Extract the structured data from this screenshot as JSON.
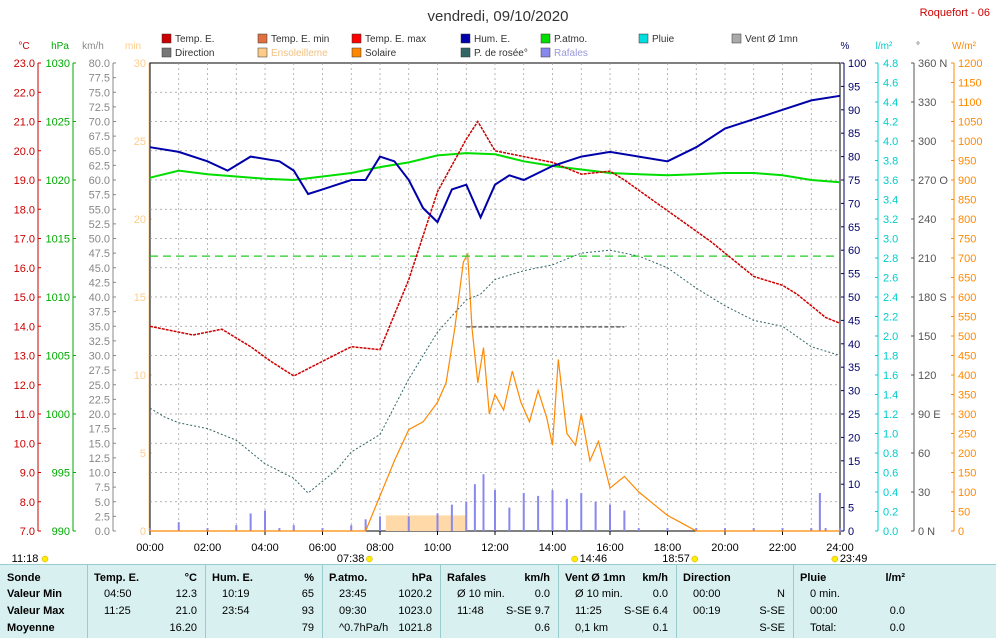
{
  "header": {
    "title": "vendredi, 09/10/2020",
    "station": "Roquefort - 06"
  },
  "legend": [
    {
      "label": "Temp. E.",
      "color": "#cc0000"
    },
    {
      "label": "Temp. E. min",
      "color": "#e07040"
    },
    {
      "label": "Temp. E. max",
      "color": "#ff0000"
    },
    {
      "label": "Hum. E.",
      "color": "#0000aa"
    },
    {
      "label": "P.atmo.",
      "color": "#00dd00"
    },
    {
      "label": "Pluie",
      "color": "#00dddd"
    },
    {
      "label": "Vent Ø 1mn",
      "color": "#aaaaaa"
    },
    {
      "label": "Direction",
      "color": "#777777"
    },
    {
      "label": "Ensoleilleme",
      "color": "#ffcc88"
    },
    {
      "label": "Solaire",
      "color": "#ff8800"
    },
    {
      "label": "P. de rosée°",
      "color": "#336666"
    },
    {
      "label": "Rafales",
      "color": "#8888ee"
    }
  ],
  "axes": {
    "temp": {
      "unit": "°C",
      "color": "#cc0000",
      "ticks": [
        "23.0",
        "22.0",
        "21.0",
        "20.0",
        "19.0",
        "18.0",
        "17.0",
        "16.0",
        "15.0",
        "14.0",
        "13.0",
        "12.0",
        "11.0",
        "10.0",
        "9.0",
        "8.0",
        "7.0"
      ]
    },
    "press": {
      "unit": "hPa",
      "color": "#00aa00",
      "ticks": [
        "1030",
        "1025",
        "1020",
        "1015",
        "1010",
        "1005",
        "1000",
        "995",
        "990"
      ]
    },
    "wind": {
      "unit": "km/h",
      "color": "#888888",
      "ticks": [
        "80.0",
        "77.5",
        "75.0",
        "72.5",
        "70.0",
        "67.5",
        "65.0",
        "62.5",
        "60.0",
        "57.5",
        "55.0",
        "52.5",
        "50.0",
        "47.5",
        "45.0",
        "42.5",
        "40.0",
        "37.5",
        "35.0",
        "32.5",
        "30.0",
        "27.5",
        "25.0",
        "22.5",
        "20.0",
        "17.5",
        "15.0",
        "12.5",
        "10.0",
        "7.5",
        "5.0",
        "2.5",
        "0.0"
      ]
    },
    "sun": {
      "unit": "min",
      "color": "#ffcc88",
      "ticks": [
        "30",
        "25",
        "20",
        "15",
        "10",
        "5",
        "0"
      ]
    },
    "hum": {
      "unit": "%",
      "color": "#000066",
      "ticks": [
        "100",
        "95",
        "90",
        "85",
        "80",
        "75",
        "70",
        "65",
        "60",
        "55",
        "50",
        "45",
        "40",
        "35",
        "30",
        "25",
        "20",
        "15",
        "10",
        "5",
        "0"
      ]
    },
    "rain": {
      "unit": "l/m²",
      "color": "#00cccc",
      "ticks": [
        "4.8",
        "4.6",
        "4.4",
        "4.2",
        "4.0",
        "3.8",
        "3.6",
        "3.4",
        "3.2",
        "3.0",
        "2.8",
        "2.6",
        "2.4",
        "2.2",
        "2.0",
        "1.8",
        "1.6",
        "1.4",
        "1.2",
        "1.0",
        "0.8",
        "0.6",
        "0.4",
        "0.2",
        "0.0"
      ]
    },
    "dir": {
      "unit": "°",
      "color": "#555555",
      "ticks": [
        "360 N",
        "330",
        "300",
        "270 O",
        "240",
        "210",
        "180 S",
        "150",
        "120",
        "90  E",
        "60",
        "30",
        "0   N"
      ]
    },
    "solar": {
      "unit": "W/m²",
      "color": "#ff8800",
      "ticks": [
        "1200",
        "1150",
        "1100",
        "1050",
        "1000",
        "950",
        "900",
        "850",
        "800",
        "750",
        "700",
        "650",
        "600",
        "550",
        "500",
        "450",
        "400",
        "350",
        "300",
        "250",
        "200",
        "150",
        "100",
        "50",
        "0"
      ]
    },
    "time": {
      "ticks": [
        "00:00",
        "02:00",
        "04:00",
        "06:00",
        "08:00",
        "10:00",
        "12:00",
        "14:00",
        "16:00",
        "18:00",
        "20:00",
        "22:00",
        "24:00"
      ]
    }
  },
  "events": {
    "moonrise": "11:18",
    "sunrise": "07:38",
    "solar_noon": "14:46",
    "sunset": "18:57",
    "moonset": "23:49"
  },
  "chart_data": {
    "type": "line",
    "x_unit": "hour",
    "xlim": [
      0,
      24
    ],
    "series": [
      {
        "name": "Temp. E.",
        "unit": "°C",
        "ylim": [
          7,
          23
        ],
        "x": [
          0,
          1.5,
          2.5,
          3.5,
          4.2,
          5,
          6,
          7,
          8,
          9,
          10,
          11,
          11.4,
          12,
          13,
          14,
          15,
          16,
          16.5,
          17.5,
          18.5,
          19.5,
          20.5,
          21,
          22,
          22.5,
          23,
          23.5,
          24
        ],
        "values": [
          14.0,
          13.7,
          13.9,
          13.3,
          12.8,
          12.3,
          12.8,
          13.3,
          13.2,
          15.6,
          18.6,
          20.4,
          21.0,
          20.0,
          19.8,
          19.6,
          19.2,
          19.3,
          19.0,
          18.3,
          17.6,
          16.9,
          16.1,
          15.7,
          15.4,
          15.1,
          14.7,
          14.3,
          14.1
        ]
      },
      {
        "name": "Hum. E.",
        "unit": "%",
        "ylim": [
          0,
          100
        ],
        "x": [
          0,
          1,
          2,
          2.7,
          3.5,
          4.5,
          5,
          5.5,
          6,
          6.5,
          7,
          7.5,
          8,
          8.5,
          9,
          9.5,
          10,
          10.5,
          11,
          11.5,
          12,
          12.5,
          13,
          14,
          15,
          16,
          17,
          18,
          19,
          20,
          21,
          22,
          23,
          24
        ],
        "values": [
          82,
          81,
          79,
          77,
          80,
          79,
          77,
          72,
          73,
          74,
          75,
          75,
          80,
          79,
          75,
          69,
          66,
          73,
          74,
          67,
          74,
          76,
          75,
          78,
          80,
          81,
          80,
          79,
          82,
          86,
          88,
          90,
          92,
          93
        ]
      },
      {
        "name": "P.atmo.",
        "unit": "hPa",
        "ylim": [
          990,
          1030
        ],
        "x": [
          0,
          1,
          2,
          3,
          4,
          5,
          6,
          7,
          8,
          9,
          10,
          11,
          12,
          13,
          14,
          15,
          16,
          17,
          18,
          19,
          20,
          21,
          22,
          23,
          24
        ],
        "values": [
          1020.2,
          1020.8,
          1020.5,
          1020.3,
          1020.1,
          1020.0,
          1020.3,
          1020.6,
          1021.1,
          1021.5,
          1022.1,
          1022.3,
          1022.2,
          1021.6,
          1021.2,
          1020.9,
          1020.6,
          1020.5,
          1020.4,
          1020.5,
          1020.6,
          1020.6,
          1020.4,
          1020.0,
          1019.8
        ]
      },
      {
        "name": "P. de rosée°",
        "unit": "°C",
        "ylim": [
          7,
          23
        ],
        "x": [
          0,
          0.5,
          1,
          2,
          3,
          4,
          5,
          5.5,
          6,
          6.5,
          7,
          8,
          9,
          10,
          11,
          11.5,
          12,
          13,
          14,
          15,
          16,
          17,
          18,
          19,
          20,
          21,
          22,
          23,
          24
        ],
        "values": [
          11.2,
          10.9,
          10.7,
          10.5,
          10.1,
          9.3,
          8.8,
          8.3,
          8.7,
          9.1,
          9.7,
          10.3,
          12.2,
          13.8,
          14.9,
          15.1,
          15.6,
          15.9,
          16.1,
          16.5,
          16.6,
          16.4,
          16.0,
          15.3,
          14.7,
          14.2,
          14.0,
          13.3,
          13.0
        ]
      },
      {
        "name": "Solaire",
        "unit": "W/m²",
        "ylim": [
          0,
          1200
        ],
        "x": [
          0,
          7.5,
          8,
          8.5,
          9,
          9.5,
          10,
          10.3,
          10.6,
          10.9,
          11.05,
          11.2,
          11.4,
          11.6,
          11.8,
          12,
          12.3,
          12.6,
          12.9,
          13.2,
          13.5,
          13.8,
          14,
          14.2,
          14.5,
          14.8,
          15,
          15.3,
          15.6,
          16,
          16.5,
          17,
          17.5,
          18,
          18.5,
          19,
          24
        ],
        "values": [
          0,
          0,
          90,
          180,
          260,
          280,
          330,
          380,
          520,
          690,
          710,
          520,
          380,
          470,
          300,
          350,
          310,
          410,
          330,
          280,
          360,
          290,
          220,
          440,
          250,
          220,
          300,
          180,
          230,
          110,
          140,
          100,
          70,
          40,
          20,
          0,
          0
        ]
      },
      {
        "name": "Rafales",
        "unit": "km/h",
        "ylim": [
          0,
          80
        ],
        "x": [
          0,
          1,
          2,
          3,
          3.5,
          4,
          4.5,
          5,
          6,
          7,
          7.5,
          8,
          9,
          10,
          10.5,
          11,
          11.3,
          11.6,
          12,
          12.5,
          13,
          13.5,
          14,
          14.5,
          15,
          15.5,
          16,
          16.5,
          17,
          18,
          19,
          20,
          21,
          22,
          23,
          23.3,
          23.5,
          24
        ],
        "values": [
          0.5,
          1.5,
          0.5,
          1.0,
          3.0,
          3.5,
          0.5,
          1.0,
          0.5,
          1.0,
          2.0,
          2.5,
          2.5,
          3.0,
          4.5,
          5.0,
          8.0,
          9.7,
          7.0,
          4.0,
          6.5,
          6.0,
          7.0,
          5.5,
          6.5,
          5.0,
          4.5,
          3.5,
          0.5,
          0.5,
          0.5,
          0.5,
          0.5,
          0.5,
          0.5,
          6.5,
          0.5,
          0.5
        ]
      },
      {
        "name": "Ensoleilleme",
        "unit": "min",
        "ylim": [
          0,
          30
        ],
        "x": [
          0,
          8.2,
          8.2,
          11.0,
          11.0,
          24
        ],
        "values": [
          0,
          0,
          1,
          1,
          0,
          0
        ]
      },
      {
        "name": "Direction",
        "unit": "°",
        "ylim": [
          0,
          360
        ],
        "x": [
          11,
          16.5
        ],
        "values": [
          157,
          157
        ]
      },
      {
        "name": "Temp. E. max ref",
        "unit": "°C",
        "ylim": [
          7,
          23
        ],
        "x": [
          0,
          24
        ],
        "values": [
          16.4,
          16.4
        ]
      }
    ]
  },
  "summary": {
    "headers": [
      {
        "title": "Sonde",
        "unit": ""
      },
      {
        "title": "Temp. E.",
        "unit": "°C"
      },
      {
        "title": "Hum. E.",
        "unit": "%"
      },
      {
        "title": "P.atmo.",
        "unit": "hPa"
      },
      {
        "title": "Rafales",
        "unit": "km/h"
      },
      {
        "title": "Vent Ø 1mn",
        "unit": "km/h"
      },
      {
        "title": "Direction",
        "unit": ""
      },
      {
        "title": "Pluie",
        "unit": "l/m²"
      }
    ],
    "row_labels": [
      "Valeur Min",
      "Valeur Max",
      "Moyenne"
    ],
    "cells": [
      [
        [
          "04:50",
          "12.3"
        ],
        [
          "10:19",
          "65"
        ],
        [
          "23:45",
          "1020.2"
        ],
        [
          "Ø 10 min.",
          "0.0"
        ],
        [
          "Ø 10 min.",
          "0.0"
        ],
        [
          "00:00",
          "N"
        ],
        [
          "0 min.",
          ""
        ]
      ],
      [
        [
          "11:25",
          "21.0"
        ],
        [
          "23:54",
          "93"
        ],
        [
          "09:30",
          "1023.0"
        ],
        [
          "11:48",
          "S-SE 9.7"
        ],
        [
          "11:25",
          "S-SE 6.4"
        ],
        [
          "00:19",
          "S-SE"
        ],
        [
          "00:00",
          "0.0"
        ]
      ],
      [
        [
          "",
          "16.20"
        ],
        [
          "",
          "79"
        ],
        [
          "^0.7hPa/h",
          "1021.8"
        ],
        [
          "",
          "0.6"
        ],
        [
          "0,1 km",
          "0.1"
        ],
        [
          "",
          "S-SE"
        ],
        [
          "Total:",
          "0.0"
        ]
      ]
    ]
  }
}
